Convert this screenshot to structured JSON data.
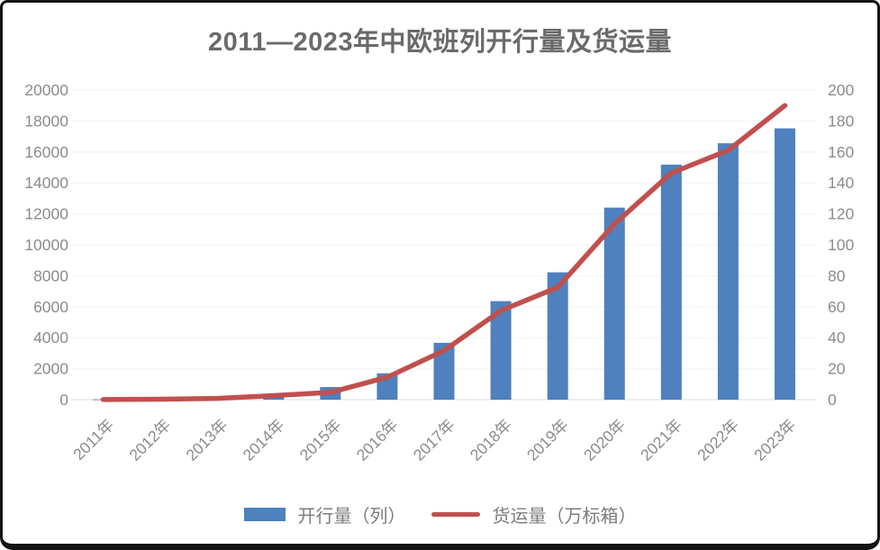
{
  "chart_data": {
    "type": "bar",
    "subtype": "bar-line-combo",
    "title": "2011—2023年中欧班列开行量及货运量",
    "categories": [
      "2011年",
      "2012年",
      "2013年",
      "2014年",
      "2015年",
      "2016年",
      "2017年",
      "2018年",
      "2019年",
      "2020年",
      "2021年",
      "2022年",
      "2023年"
    ],
    "series": [
      {
        "name": "开行量（列）",
        "type": "bar",
        "axis": "left",
        "color": "#4E81BD",
        "values": [
          17,
          42,
          80,
          308,
          815,
          1702,
          3673,
          6363,
          8225,
          12406,
          15183,
          16562,
          17523
        ]
      },
      {
        "name": "货运量（万标箱）",
        "type": "line",
        "axis": "right",
        "color": "#C0504D",
        "values": [
          0.1,
          0.3,
          0.8,
          2.6,
          4.7,
          14.5,
          31.7,
          57.5,
          72.5,
          113.5,
          146.4,
          161,
          190
        ]
      }
    ],
    "left_axis": {
      "min": 0,
      "max": 20000,
      "step": 2000,
      "tick_labels": [
        "0",
        "2000",
        "4000",
        "6000",
        "8000",
        "10000",
        "12000",
        "14000",
        "16000",
        "18000",
        "20000"
      ]
    },
    "right_axis": {
      "min": 0,
      "max": 200,
      "step": 20,
      "tick_labels": [
        "0",
        "20",
        "40",
        "60",
        "80",
        "100",
        "120",
        "140",
        "160",
        "180",
        "200"
      ]
    },
    "grid": true,
    "legend_position": "bottom",
    "x_label_rotation_deg": 45
  },
  "colors": {
    "bar": "#4E81BD",
    "line": "#C0504D",
    "axis_text": "#8b8b8b",
    "gridline": "#f5f5f5",
    "baseline": "#e7e7e7",
    "title_text": "#6a6a6a",
    "frame_border": "#141414",
    "background": "#ffffff"
  }
}
